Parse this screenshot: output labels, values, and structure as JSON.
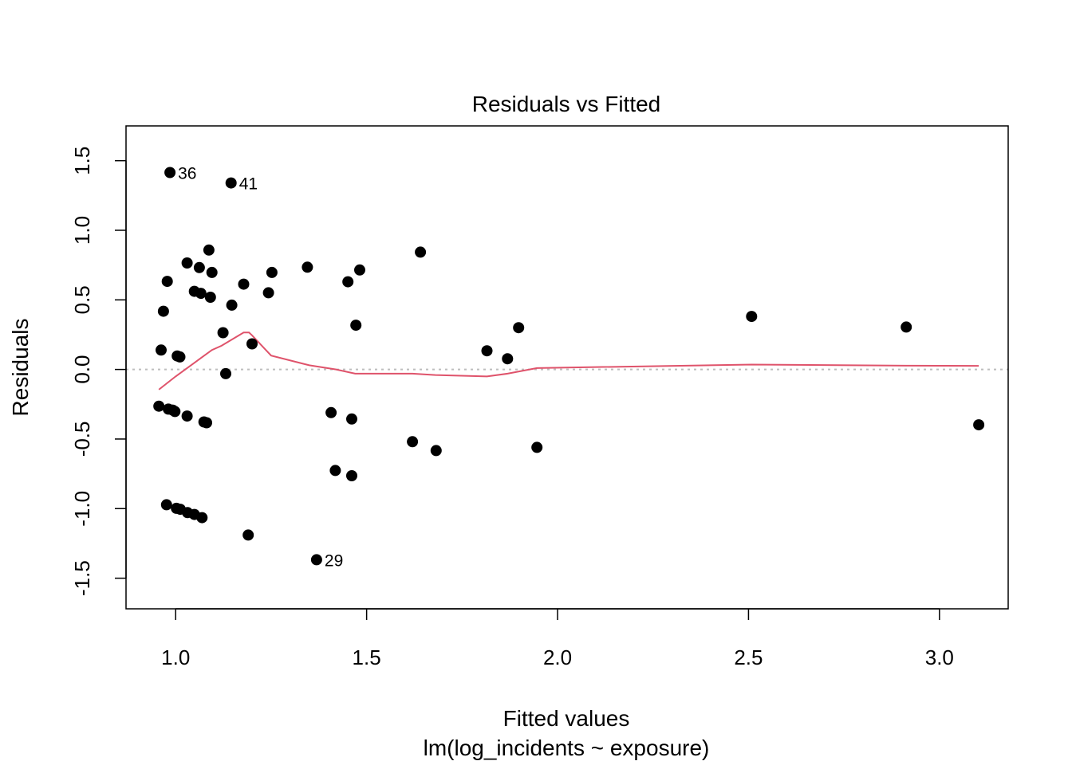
{
  "chart_data": {
    "type": "scatter",
    "title": "Residuals vs Fitted",
    "xlabel": "Fitted values",
    "xsublabel": "lm(log_incidents ~ exposure)",
    "ylabel": "Residuals",
    "xlim": [
      0.87,
      3.18
    ],
    "ylim": [
      -1.72,
      1.75
    ],
    "xticks": [
      1.0,
      1.5,
      2.0,
      2.5,
      3.0
    ],
    "xtick_labels": [
      "1.0",
      "1.5",
      "2.0",
      "2.5",
      "3.0"
    ],
    "yticks": [
      -1.5,
      -1.0,
      -0.5,
      0.0,
      0.5,
      1.0,
      1.5
    ],
    "ytick_labels": [
      "-1.5",
      "-1.0",
      "-0.5",
      "0.0",
      "0.5",
      "1.0",
      "1.5"
    ],
    "grid": false,
    "reference_line": {
      "y": 0,
      "style": "dotted",
      "color": "#BEBEBE"
    },
    "colors": {
      "points": "#000000",
      "smooth": "#DF536B",
      "reference": "#BEBEBE"
    },
    "points": {
      "x": [
        0.985,
        1.145,
        1.087,
        1.03,
        1.062,
        0.978,
        1.095,
        1.049,
        1.066,
        1.091,
        0.968,
        1.178,
        1.147,
        1.124,
        1.2,
        0.962,
        1.004,
        1.011,
        1.131,
        1.345,
        1.451,
        1.482,
        1.641,
        1.252,
        1.243,
        1.472,
        1.898,
        2.508,
        2.913,
        1.815,
        1.869,
        0.956,
        0.981,
        0.992,
        0.998,
        1.03,
        1.074,
        1.081,
        1.407,
        1.461,
        1.62,
        1.682,
        1.946,
        3.103,
        1.418,
        1.461,
        0.976,
        1.002,
        1.012,
        1.031,
        1.049,
        1.069,
        1.19,
        1.369
      ],
      "y": [
        1.415,
        1.34,
        0.858,
        0.765,
        0.732,
        0.633,
        0.697,
        0.561,
        0.547,
        0.519,
        0.418,
        0.613,
        0.462,
        0.264,
        0.184,
        0.139,
        0.097,
        0.09,
        -0.03,
        0.735,
        0.63,
        0.715,
        0.843,
        0.697,
        0.551,
        0.318,
        0.3,
        0.381,
        0.305,
        0.134,
        0.077,
        -0.264,
        -0.285,
        -0.292,
        -0.302,
        -0.335,
        -0.377,
        -0.383,
        -0.31,
        -0.356,
        -0.519,
        -0.583,
        -0.56,
        -0.398,
        -0.726,
        -0.764,
        -0.972,
        -0.998,
        -1.005,
        -1.029,
        -1.042,
        -1.065,
        -1.19,
        -1.367
      ]
    },
    "point_labels": [
      {
        "text": "36",
        "x": 0.985,
        "y": 1.415,
        "side": "right"
      },
      {
        "text": "41",
        "x": 1.145,
        "y": 1.34,
        "side": "right"
      },
      {
        "text": "29",
        "x": 1.369,
        "y": -1.367,
        "side": "right"
      }
    ],
    "smooth_line": {
      "x": [
        0.956,
        1.0,
        1.05,
        1.095,
        1.12,
        1.178,
        1.192,
        1.2,
        1.25,
        1.35,
        1.42,
        1.47,
        1.62,
        1.68,
        1.815,
        1.869,
        1.946,
        2.508,
        2.913,
        3.103
      ],
      "y": [
        -0.145,
        -0.05,
        0.05,
        0.14,
        0.17,
        0.265,
        0.265,
        0.245,
        0.1,
        0.03,
        0.0,
        -0.03,
        -0.03,
        -0.04,
        -0.05,
        -0.03,
        0.01,
        0.035,
        0.027,
        0.026
      ]
    }
  }
}
